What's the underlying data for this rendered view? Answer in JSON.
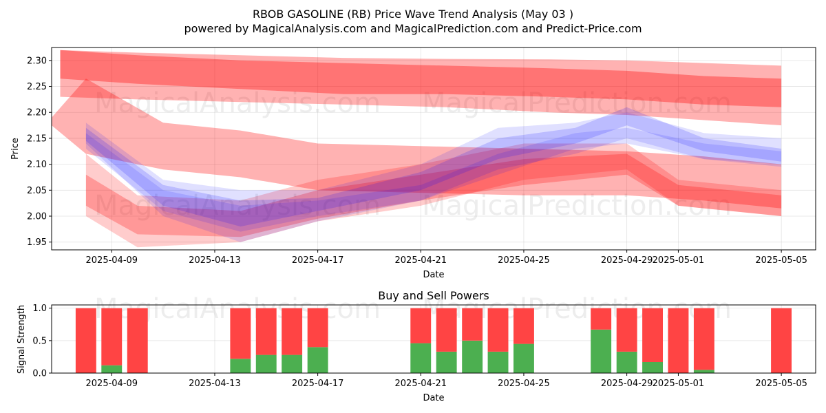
{
  "figure": {
    "title": "RBOB GASOLINE (RB) Price Wave Trend Analysis (May 03 )",
    "subtitle": "powered by MagicalAnalysis.com and MagicalPrediction.com and Predict-Price.com",
    "watermarks": [
      "MagicalAnalysis.com",
      "MagicalPrediction.com"
    ]
  },
  "chart_data": [
    {
      "type": "area",
      "title": "",
      "xlabel": "Date",
      "ylabel": "Price",
      "xlim": [
        "2025-04-06T16:00",
        "2025-05-06T08:00"
      ],
      "ylim": [
        1.935,
        2.325
      ],
      "x_ticks": [
        "2025-04-09",
        "2025-04-13",
        "2025-04-17",
        "2025-04-21",
        "2025-04-25",
        "2025-04-29",
        "2025-05-01",
        "2025-05-05"
      ],
      "y_ticks": [
        1.95,
        2.0,
        2.05,
        2.1,
        2.15,
        2.2,
        2.25,
        2.3
      ],
      "grid": true,
      "colors": {
        "sell": "#ff0000",
        "buy": "#0000ff"
      },
      "series": [
        {
          "color": "sell",
          "opacity": 0.3,
          "x": [
            "2025-04-07",
            "2025-04-10",
            "2025-04-14",
            "2025-04-18",
            "2025-04-22",
            "2025-04-26",
            "2025-04-29",
            "2025-05-02",
            "2025-05-05"
          ],
          "upper": [
            2.32,
            2.315,
            2.31,
            2.305,
            2.303,
            2.302,
            2.3,
            2.295,
            2.29
          ],
          "lower": [
            2.23,
            2.225,
            2.22,
            2.215,
            2.21,
            2.2,
            2.195,
            2.185,
            2.175
          ]
        },
        {
          "color": "sell",
          "opacity": 0.35,
          "x": [
            "2025-04-07",
            "2025-04-10",
            "2025-04-14",
            "2025-04-18",
            "2025-04-22",
            "2025-04-26",
            "2025-04-29",
            "2025-05-02",
            "2025-05-05"
          ],
          "upper": [
            2.32,
            2.31,
            2.3,
            2.295,
            2.29,
            2.285,
            2.28,
            2.27,
            2.265
          ],
          "lower": [
            2.265,
            2.255,
            2.245,
            2.235,
            2.235,
            2.23,
            2.225,
            2.215,
            2.21
          ]
        },
        {
          "color": "sell",
          "opacity": 0.3,
          "x": [
            "2025-04-06T16:00",
            "2025-04-08",
            "2025-04-11",
            "2025-04-14",
            "2025-04-17",
            "2025-04-21",
            "2025-04-25",
            "2025-04-29",
            "2025-05-02",
            "2025-05-05"
          ],
          "upper": [
            2.19,
            2.265,
            2.18,
            2.165,
            2.14,
            2.135,
            2.13,
            2.125,
            2.115,
            2.1
          ],
          "lower": [
            2.175,
            2.12,
            2.09,
            2.075,
            2.05,
            2.045,
            2.04,
            2.04,
            2.03,
            2.015
          ]
        },
        {
          "color": "sell",
          "opacity": 0.25,
          "x": [
            "2025-04-08",
            "2025-04-10",
            "2025-04-14",
            "2025-04-17",
            "2025-04-21",
            "2025-04-25",
            "2025-04-29",
            "2025-05-01",
            "2025-05-05"
          ],
          "upper": [
            2.08,
            2.02,
            2.01,
            2.05,
            2.08,
            2.11,
            2.12,
            2.06,
            2.04
          ],
          "lower": [
            2.02,
            1.965,
            1.96,
            1.995,
            2.03,
            2.06,
            2.08,
            2.02,
            2.0
          ]
        },
        {
          "color": "sell",
          "opacity": 0.2,
          "x": [
            "2025-04-08",
            "2025-04-10",
            "2025-04-14",
            "2025-04-17",
            "2025-04-21",
            "2025-04-25",
            "2025-04-29",
            "2025-05-01",
            "2025-05-05"
          ],
          "upper": [
            2.12,
            2.04,
            2.03,
            2.07,
            2.1,
            2.14,
            2.14,
            2.07,
            2.05
          ],
          "lower": [
            2.0,
            1.94,
            1.95,
            1.99,
            2.02,
            2.07,
            2.09,
            2.02,
            2.0
          ]
        },
        {
          "color": "buy",
          "opacity": 0.12,
          "x": [
            "2025-04-08",
            "2025-04-11",
            "2025-04-14",
            "2025-04-17",
            "2025-04-21",
            "2025-04-24",
            "2025-04-27",
            "2025-04-29",
            "2025-05-02",
            "2025-05-05"
          ],
          "upper": [
            2.18,
            2.07,
            2.05,
            2.05,
            2.1,
            2.17,
            2.18,
            2.2,
            2.16,
            2.15
          ],
          "lower": [
            2.14,
            2.0,
            1.95,
            1.99,
            2.03,
            2.09,
            2.12,
            2.15,
            2.11,
            2.1
          ]
        },
        {
          "color": "buy",
          "opacity": 0.16,
          "x": [
            "2025-04-08",
            "2025-04-11",
            "2025-04-14",
            "2025-04-17",
            "2025-04-21",
            "2025-04-24",
            "2025-04-27",
            "2025-04-29",
            "2025-05-02",
            "2025-05-05"
          ],
          "upper": [
            2.17,
            2.06,
            2.03,
            2.035,
            2.085,
            2.15,
            2.17,
            2.21,
            2.15,
            2.13
          ],
          "lower": [
            2.145,
            2.02,
            1.98,
            2.01,
            2.05,
            2.11,
            2.14,
            2.175,
            2.125,
            2.105
          ]
        },
        {
          "color": "buy",
          "opacity": 0.12,
          "x": [
            "2025-04-08",
            "2025-04-11",
            "2025-04-14",
            "2025-04-17",
            "2025-04-21",
            "2025-04-24",
            "2025-04-27",
            "2025-04-29",
            "2025-05-02",
            "2025-05-05"
          ],
          "upper": [
            2.16,
            2.05,
            2.02,
            2.03,
            2.06,
            2.12,
            2.16,
            2.17,
            2.14,
            2.125
          ],
          "lower": [
            2.13,
            2.01,
            1.97,
            2.0,
            2.03,
            2.08,
            2.13,
            2.14,
            2.11,
            2.095
          ]
        }
      ]
    },
    {
      "type": "bar",
      "title": "Buy and Sell Powers",
      "xlabel": "Date",
      "ylabel": "Signal Strength",
      "ylim": [
        0,
        1.05
      ],
      "y_ticks": [
        0.0,
        0.5,
        1.0
      ],
      "x_ticks": [
        "2025-04-09",
        "2025-04-13",
        "2025-04-17",
        "2025-04-21",
        "2025-04-25",
        "2025-04-29",
        "2025-05-01",
        "2025-05-05"
      ],
      "grid": true,
      "colors": {
        "buy": "#4caf50",
        "sell": "#ff4444"
      },
      "dates": [
        "2025-04-08",
        "2025-04-09",
        "2025-04-10",
        "2025-04-14",
        "2025-04-15",
        "2025-04-16",
        "2025-04-17",
        "2025-04-21",
        "2025-04-22",
        "2025-04-23",
        "2025-04-24",
        "2025-04-25",
        "2025-04-28",
        "2025-04-29",
        "2025-04-30",
        "2025-05-01",
        "2025-05-02",
        "2025-05-05"
      ],
      "buy": [
        0.0,
        0.12,
        0.0,
        0.22,
        0.28,
        0.28,
        0.4,
        0.46,
        0.33,
        0.5,
        0.33,
        0.45,
        0.67,
        0.33,
        0.17,
        0.0,
        0.05,
        0.0
      ],
      "sell": [
        1.0,
        0.88,
        1.0,
        0.78,
        0.72,
        0.72,
        0.6,
        0.54,
        0.67,
        0.5,
        0.67,
        0.55,
        0.33,
        0.67,
        0.83,
        1.0,
        0.95,
        1.0
      ]
    }
  ]
}
